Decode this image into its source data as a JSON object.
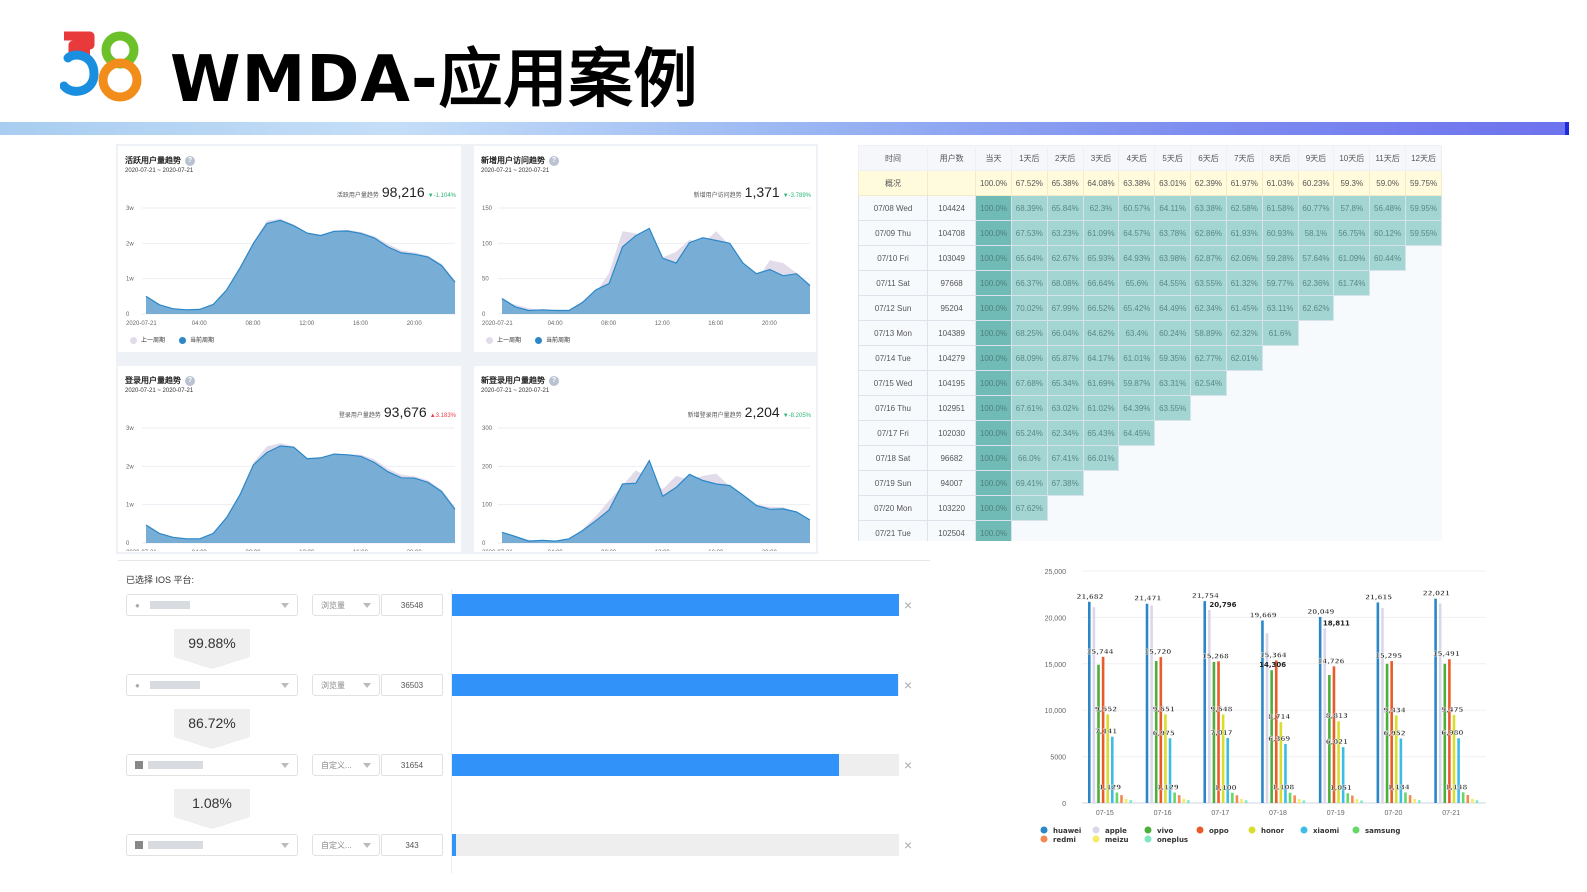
{
  "header": {
    "logo_text": "58",
    "title": "WMDA-应用案例",
    "logo_colors": {
      "five_top": "#e8393b",
      "five_bottom": "#1a8fe0",
      "eight_top": "#6cc12a",
      "eight_bottom": "#f28c1a"
    }
  },
  "dashboard": {
    "legend": {
      "prev": "上一周期",
      "curr": "当前周期"
    },
    "colors": {
      "curr_fill": "#78aed6",
      "curr_line": "#2b87c8",
      "prev_fill": "#e2dbea"
    },
    "x_ticks": [
      "2020-07-21",
      "04:00",
      "08:00",
      "12:00",
      "16:00",
      "20:00"
    ],
    "cards": [
      {
        "title": "活跃用户量趋势",
        "date": "2020-07-21 ~ 2020-07-21",
        "kpi_label": "活跃用户量趋势",
        "kpi_value": "98,216",
        "change": "▼-1.104%",
        "trend": "down",
        "y_ticks": [
          "3w",
          "2w",
          "1w",
          "0"
        ],
        "ymax": 30000,
        "curr": [
          5000,
          2600,
          1500,
          1200,
          1300,
          2700,
          6800,
          13000,
          20000,
          25600,
          26500,
          25000,
          22900,
          22200,
          23400,
          23500,
          22800,
          21500,
          19000,
          17300,
          16900,
          16100,
          13700,
          9000
        ],
        "prev": [
          5100,
          2700,
          1600,
          1300,
          1400,
          2800,
          7000,
          13500,
          20500,
          26400,
          27000,
          25300,
          23000,
          22500,
          23600,
          23800,
          23200,
          22000,
          19800,
          18000,
          17400,
          16500,
          14200,
          9400
        ]
      },
      {
        "title": "新增用户访问趋势",
        "date": "2020-07-21 ~ 2020-07-21",
        "kpi_label": "新增用户访问趋势",
        "kpi_value": "1,371",
        "change": "▼-3.789%",
        "trend": "down",
        "y_ticks": [
          "150",
          "100",
          "50",
          "0"
        ],
        "ymax": 150,
        "curr": [
          22,
          10,
          5,
          6,
          5,
          5,
          16,
          34,
          43,
          95,
          111,
          121,
          79,
          72,
          101,
          108,
          104,
          100,
          72,
          57,
          63,
          54,
          57,
          40
        ],
        "prev": [
          18,
          13,
          8,
          5,
          6,
          6,
          18,
          30,
          58,
          117,
          114,
          104,
          80,
          88,
          105,
          100,
          117,
          97,
          65,
          47,
          76,
          72,
          58,
          42
        ]
      },
      {
        "title": "登录用户量趋势",
        "date": "2020-07-21 ~ 2020-07-21",
        "kpi_label": "登录用户量趋势",
        "kpi_value": "93,676",
        "change": "▲3.183%",
        "trend": "up",
        "y_ticks": [
          "3w",
          "2w",
          "1w",
          "0"
        ],
        "ymax": 30000,
        "curr": [
          4700,
          2500,
          1500,
          1100,
          1100,
          2500,
          6600,
          12600,
          20400,
          23600,
          25300,
          25000,
          22000,
          22200,
          23200,
          23000,
          22600,
          21000,
          18600,
          17000,
          16900,
          15800,
          13400,
          8800
        ],
        "prev": [
          4800,
          2600,
          1600,
          1200,
          1200,
          2600,
          6900,
          13000,
          21000,
          25200,
          26000,
          25200,
          22100,
          22400,
          23300,
          23200,
          23000,
          21800,
          19400,
          17800,
          17400,
          16300,
          13900,
          9300
        ]
      },
      {
        "title": "新登录用户量趋势",
        "date": "2020-07-21 ~ 2020-07-21",
        "kpi_label": "新增登录用户量趋势",
        "kpi_value": "2,204",
        "change": "▼-8.205%",
        "trend": "down",
        "y_ticks": [
          "300",
          "200",
          "100",
          "0"
        ],
        "ymax": 300,
        "curr": [
          28,
          17,
          5,
          7,
          5,
          11,
          32,
          58,
          86,
          154,
          156,
          215,
          122,
          145,
          179,
          163,
          154,
          150,
          125,
          98,
          88,
          89,
          81,
          60
        ],
        "prev": [
          25,
          15,
          8,
          6,
          6,
          10,
          35,
          70,
          110,
          150,
          190,
          168,
          140,
          175,
          165,
          175,
          181,
          148,
          120,
          100,
          95,
          93,
          80,
          62
        ]
      }
    ]
  },
  "retention": {
    "headers": [
      "时间",
      "用户数",
      "当天",
      "1天后",
      "2天后",
      "3天后",
      "4天后",
      "5天后",
      "6天后",
      "7天后",
      "8天后",
      "9天后",
      "10天后",
      "11天后",
      "12天后"
    ],
    "summary": {
      "label": "概况",
      "users": "",
      "values": [
        "100.0%",
        "67.52%",
        "65.38%",
        "64.08%",
        "63.38%",
        "63.01%",
        "62.39%",
        "61.97%",
        "61.03%",
        "60.23%",
        "59.3%",
        "59.0%",
        "59.75%"
      ]
    },
    "rows": [
      {
        "date": "07/08 Wed",
        "users": "104424",
        "values": [
          "100.0%",
          "68.39%",
          "65.84%",
          "62.3%",
          "60.57%",
          "64.11%",
          "63.38%",
          "62.58%",
          "61.58%",
          "60.77%",
          "57.8%",
          "56.48%",
          "59.95%"
        ]
      },
      {
        "date": "07/09 Thu",
        "users": "104708",
        "values": [
          "100.0%",
          "67.53%",
          "63.23%",
          "61.09%",
          "64.57%",
          "63.78%",
          "62.86%",
          "61.93%",
          "60.93%",
          "58.1%",
          "56.75%",
          "60.12%",
          "59.55%"
        ]
      },
      {
        "date": "07/10 Fri",
        "users": "103049",
        "values": [
          "100.0%",
          "65.64%",
          "62.67%",
          "65.93%",
          "64.93%",
          "63.98%",
          "62.87%",
          "62.06%",
          "59.28%",
          "57.64%",
          "61.09%",
          "60.44%"
        ]
      },
      {
        "date": "07/11 Sat",
        "users": "97668",
        "values": [
          "100.0%",
          "66.37%",
          "68.08%",
          "66.64%",
          "65.6%",
          "64.55%",
          "63.55%",
          "61.32%",
          "59.77%",
          "62.36%",
          "61.74%"
        ]
      },
      {
        "date": "07/12 Sun",
        "users": "95204",
        "values": [
          "100.0%",
          "70.02%",
          "67.99%",
          "66.52%",
          "65.42%",
          "64.49%",
          "62.34%",
          "61.45%",
          "63.11%",
          "62.62%"
        ]
      },
      {
        "date": "07/13 Mon",
        "users": "104389",
        "values": [
          "100.0%",
          "68.25%",
          "66.04%",
          "64.62%",
          "63.4%",
          "60.24%",
          "58.89%",
          "62.32%",
          "61.6%"
        ]
      },
      {
        "date": "07/14 Tue",
        "users": "104279",
        "values": [
          "100.0%",
          "68.09%",
          "65.87%",
          "64.17%",
          "61.01%",
          "59.35%",
          "62.77%",
          "62.01%"
        ]
      },
      {
        "date": "07/15 Wed",
        "users": "104195",
        "values": [
          "100.0%",
          "67.68%",
          "65.34%",
          "61.69%",
          "59.87%",
          "63.31%",
          "62.54%"
        ]
      },
      {
        "date": "07/16 Thu",
        "users": "102951",
        "values": [
          "100.0%",
          "67.61%",
          "63.02%",
          "61.02%",
          "64.39%",
          "63.55%"
        ]
      },
      {
        "date": "07/17 Fri",
        "users": "102030",
        "values": [
          "100.0%",
          "65.24%",
          "62.34%",
          "65.43%",
          "64.45%"
        ]
      },
      {
        "date": "07/18 Sat",
        "users": "96682",
        "values": [
          "100.0%",
          "66.0%",
          "67.41%",
          "66.01%"
        ]
      },
      {
        "date": "07/19 Sun",
        "users": "94007",
        "values": [
          "100.0%",
          "69.41%",
          "67.38%"
        ]
      },
      {
        "date": "07/20 Mon",
        "users": "103220",
        "values": [
          "100.0%",
          "67.62%"
        ]
      },
      {
        "date": "07/21 Tue",
        "users": "102504",
        "values": [
          "100.0%"
        ]
      }
    ]
  },
  "funnel": {
    "label": "已选择 IOS 平台:",
    "steps": [
      {
        "event_icon": "apple",
        "metric": "浏览量",
        "count": "36548",
        "ratio": 1.0
      },
      {
        "event_icon": "apple",
        "metric": "浏览量",
        "count": "36503",
        "ratio": 0.9988
      },
      {
        "event_icon": "",
        "metric": "自定义...",
        "count": "31654",
        "ratio": 0.866
      },
      {
        "event_icon": "",
        "metric": "自定义...",
        "count": "343",
        "ratio": 0.0094
      }
    ],
    "conversions": [
      "99.88%",
      "86.72%",
      "1.08%"
    ],
    "bar_color": "#3193fa",
    "close_glyph": "×"
  },
  "chart_data": {
    "type": "bar",
    "title": "",
    "categories": [
      "07-15",
      "07-16",
      "07-17",
      "07-18",
      "07-19",
      "07-20",
      "07-21"
    ],
    "y_ticks": [
      "25,000",
      "20,000",
      "15,000",
      "10,000",
      "5000",
      "0"
    ],
    "ylim": [
      0,
      25000
    ],
    "legend_position": "bottom",
    "series": [
      {
        "name": "huawei",
        "color": "#2b87c8",
        "values": [
          21682,
          21471,
          21754,
          19669,
          20049,
          21615,
          22021
        ]
      },
      {
        "name": "apple",
        "color": "#dcd6ea",
        "values": [
          21100,
          21300,
          20796,
          18300,
          18811,
          21000,
          21500
        ]
      },
      {
        "name": "vivo",
        "color": "#4caf3c",
        "values": [
          14900,
          15300,
          15200,
          14306,
          13800,
          15000,
          15000
        ]
      },
      {
        "name": "oppo",
        "color": "#ea5b2c",
        "values": [
          15744,
          15720,
          15268,
          15364,
          14726,
          15295,
          15491
        ]
      },
      {
        "name": "honor",
        "color": "#d9de2c",
        "values": [
          9552,
          9551,
          9548,
          8714,
          8813,
          9434,
          9475
        ]
      },
      {
        "name": "xiaomi",
        "color": "#3dbde6",
        "values": [
          7141,
          6975,
          7017,
          6369,
          6021,
          6952,
          6980
        ]
      },
      {
        "name": "samsung",
        "color": "#66d766",
        "values": [
          1129,
          1129,
          1100,
          1108,
          1051,
          1134,
          1148
        ]
      },
      {
        "name": "redmi",
        "color": "#f48a52",
        "values": [
          850,
          850,
          830,
          820,
          800,
          850,
          860
        ]
      },
      {
        "name": "meizu",
        "color": "#f6ea6b",
        "values": [
          450,
          450,
          440,
          430,
          420,
          450,
          460
        ]
      },
      {
        "name": "oneplus",
        "color": "#7fe8c2",
        "values": [
          300,
          300,
          290,
          280,
          270,
          300,
          300
        ]
      }
    ],
    "labels_shown": {
      "huawei": [
        "21,682",
        "21,471",
        "21,754",
        "19,669",
        "20,049",
        "21,615",
        "22,021"
      ],
      "apple_0717": "20,796",
      "apple_0719": "18,811",
      "oppo": [
        "15,744",
        "15,720",
        "15,268",
        "15,364",
        "14,726",
        "15,295",
        "15,491"
      ],
      "vivo_0718": "14,306",
      "honor": [
        "9,552",
        "9,551",
        "9,548",
        "8,714",
        "8,813",
        "9,434",
        "9,475"
      ],
      "xiaomi": [
        "7,141",
        "6,975",
        "7,017",
        "6,369",
        "6,021",
        "6,952",
        "6,980"
      ],
      "samsung": [
        "1,129",
        "1,129",
        "1,100",
        "1,108",
        "1,051",
        "1,134",
        "1,148"
      ]
    }
  }
}
